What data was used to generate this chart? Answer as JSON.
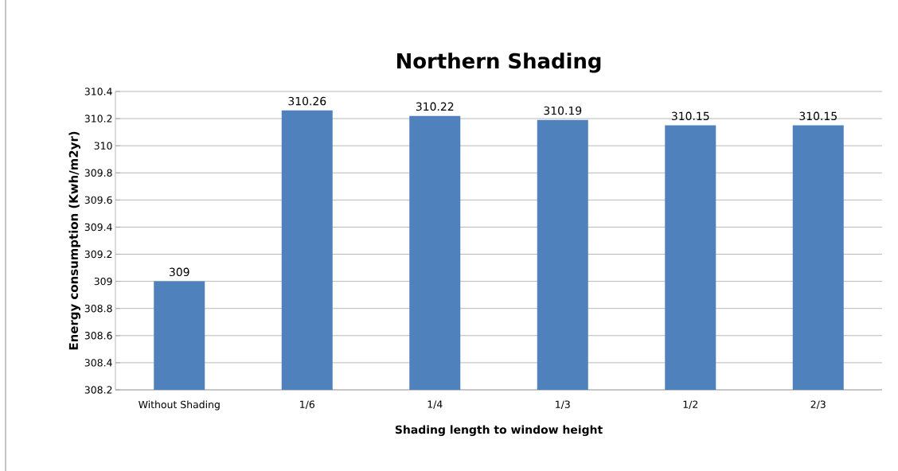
{
  "chart_data": {
    "type": "bar",
    "title": "Northern Shading",
    "xlabel": "Shading length to window height",
    "ylabel": "Energy consumption  (Kwh/m2yr)",
    "categories": [
      "Without Shading",
      "1/6",
      "1/4",
      "1/3",
      "1/2",
      "2/3"
    ],
    "values": [
      309,
      310.26,
      310.22,
      310.19,
      310.15,
      310.15
    ],
    "color": "#4f81bd",
    "ylim": [
      308.2,
      310.4
    ],
    "yticks": [
      308.2,
      308.4,
      308.6,
      308.8,
      309,
      309.2,
      309.4,
      309.6,
      309.8,
      310,
      310.2,
      310.4
    ],
    "grid": "y",
    "data_labels": true
  }
}
